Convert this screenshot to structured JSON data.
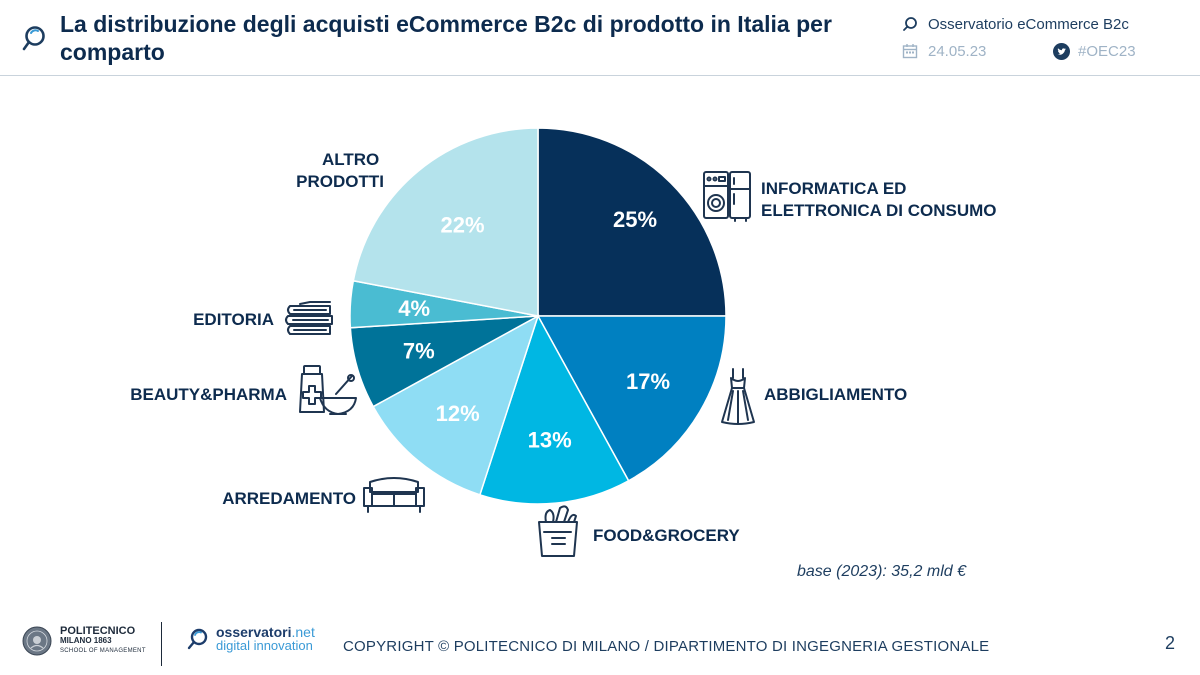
{
  "header": {
    "title": "La distribuzione degli acquisti eCommerce B2c di prodotto in Italia per comparto",
    "observatory": "Osservatorio eCommerce B2c",
    "date": "24.05.23",
    "hashtag": "#OEC23"
  },
  "chart_data": {
    "type": "pie",
    "title": "La distribuzione degli acquisti eCommerce B2c di prodotto in Italia per comparto",
    "unit": "%",
    "slices": [
      {
        "label": "INFORMATICA ED ELETTRONICA DI CONSUMO",
        "value": 25,
        "display": "25%",
        "color": "#06305a",
        "icon": "electronics-icon"
      },
      {
        "label": "ABBIGLIAMENTO",
        "value": 17,
        "display": "17%",
        "color": "#0080c1",
        "icon": "dress-icon"
      },
      {
        "label": "FOOD&GROCERY",
        "value": 13,
        "display": "13%",
        "color": "#00b7e3",
        "icon": "grocery-bag-icon"
      },
      {
        "label": "ARREDAMENTO",
        "value": 12,
        "display": "12%",
        "color": "#8fddf4",
        "icon": "sofa-icon"
      },
      {
        "label": "BEAUTY&PHARMA",
        "value": 7,
        "display": "7%",
        "color": "#007399",
        "icon": "pharmacy-mortar-icon"
      },
      {
        "label": "EDITORIA",
        "value": 4,
        "display": "4%",
        "color": "#4abcd2",
        "icon": "books-icon"
      },
      {
        "label": "ALTRO PRODOTTI",
        "value": 22,
        "display": "22%",
        "color": "#b4e3ec",
        "icon": null
      }
    ],
    "note": "base (2023): 35,2 mld €"
  },
  "footer": {
    "poli_name": "POLITECNICO",
    "poli_sub": "MILANO 1863",
    "poli_school": "SCHOOL OF MANAGEMENT",
    "oss_name": "osservatori",
    "oss_suffix": ".net",
    "oss_sub": "digital innovation",
    "copyright": "COPYRIGHT © POLITECNICO DI MILANO / DIPARTIMENTO DI INGEGNERIA GESTIONALE",
    "page_number": "2"
  },
  "colors": {
    "navy": "#0d2b4e",
    "accent_blue": "#3a9ad6"
  }
}
